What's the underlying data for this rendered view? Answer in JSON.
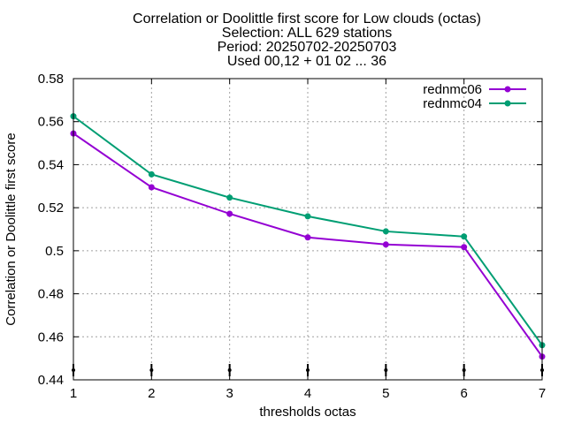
{
  "chart_data": {
    "type": "line",
    "title_lines": [
      "Correlation or Doolittle first score  for Low clouds (octas)",
      "Selection: ALL    629 stations",
      "Period: 20250702-20250703",
      "Used 00,12 + 01 02 ... 36"
    ],
    "xlabel": "thresholds octas",
    "ylabel": "Correlation or Doolittle first score",
    "x": [
      1,
      2,
      3,
      4,
      5,
      6,
      7
    ],
    "xlim": [
      1,
      7
    ],
    "ylim": [
      0.44,
      0.58
    ],
    "xticks": [
      1,
      2,
      3,
      4,
      5,
      6,
      7
    ],
    "xtick_labels": [
      "1",
      "2",
      "3",
      "4",
      "5",
      "6",
      "7"
    ],
    "yticks": [
      0.44,
      0.46,
      0.48,
      0.5,
      0.52,
      0.54,
      0.56,
      0.58
    ],
    "ytick_labels": [
      "0.44",
      "0.46",
      "0.48",
      "0.5",
      "0.52",
      "0.54",
      "0.56",
      "0.58"
    ],
    "grid": true,
    "legend_position": "top-right",
    "series": [
      {
        "name": "rednmc06",
        "color": "#9400d3",
        "values": [
          0.5545,
          0.5295,
          0.5172,
          0.5062,
          0.5029,
          0.5017,
          0.4508
        ]
      },
      {
        "name": "rednmc04",
        "color": "#009e73",
        "values": [
          0.5625,
          0.5355,
          0.5247,
          0.516,
          0.509,
          0.5066,
          0.4561
        ]
      }
    ]
  }
}
